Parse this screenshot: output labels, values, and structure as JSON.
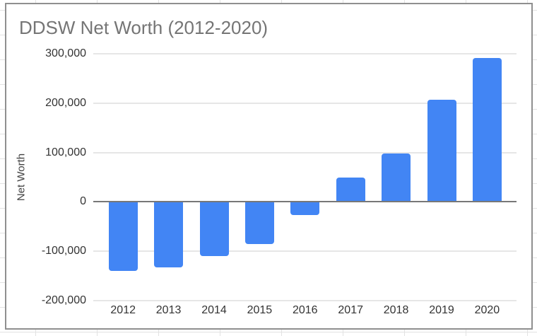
{
  "chart": {
    "title": "DDSW Net Worth (2012-2020)",
    "y_axis_title": "Net Worth"
  },
  "chart_data": {
    "type": "bar",
    "title": "DDSW Net Worth (2012-2020)",
    "categories": [
      "2012",
      "2013",
      "2014",
      "2015",
      "2016",
      "2017",
      "2018",
      "2019",
      "2020"
    ],
    "values": [
      -140000,
      -133000,
      -110000,
      -85000,
      -27000,
      50000,
      98000,
      207000,
      292000
    ],
    "xlabel": "",
    "ylabel": "Net Worth",
    "ylim": [
      -200000,
      300000
    ],
    "ytick_interval": 100000,
    "yticks": [
      {
        "value": 300000,
        "label": "300,000"
      },
      {
        "value": 200000,
        "label": "200,000"
      },
      {
        "value": 100000,
        "label": "100,000"
      },
      {
        "value": 0,
        "label": "0"
      },
      {
        "value": -100000,
        "label": "-100,000"
      },
      {
        "value": -200000,
        "label": "-200,000"
      }
    ],
    "grid": true,
    "legend_position": "none",
    "bar_color": "#4285f4"
  },
  "colors": {
    "bar": "#4285f4",
    "title_text": "#757575",
    "axis_text": "#333333",
    "gridline": "#e6e6e6",
    "zero_line": "#787878",
    "card_border": "#8f8f8f",
    "sheet_gridline": "#e2e2e2"
  }
}
